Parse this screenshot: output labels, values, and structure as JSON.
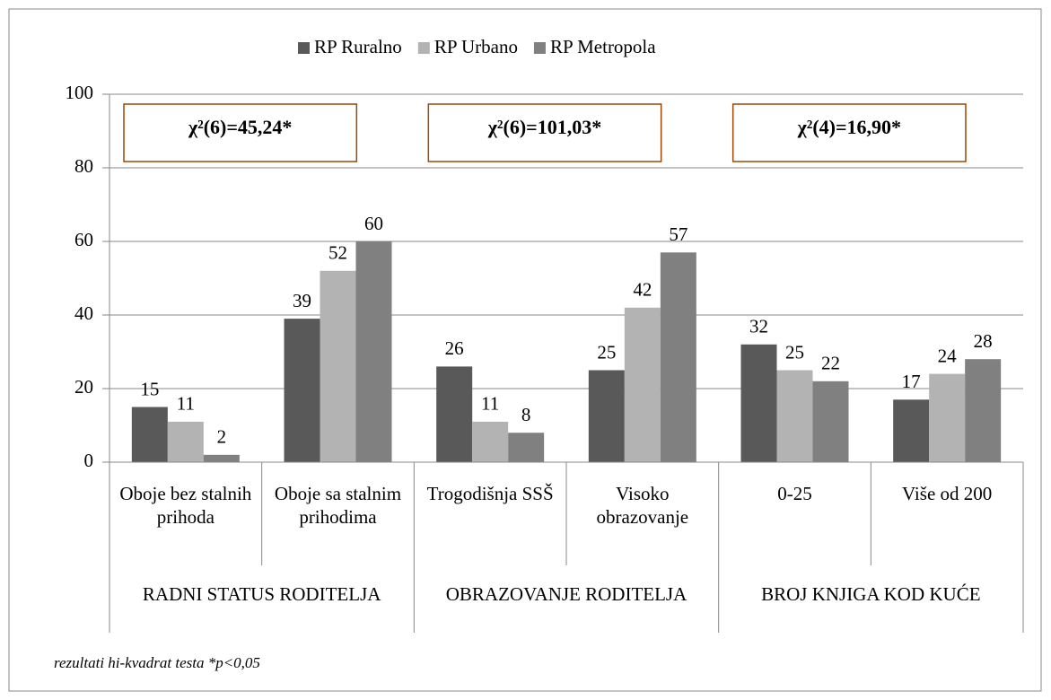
{
  "chart_data": {
    "type": "bar",
    "categories": [
      "Oboje bez stalnih prihoda",
      "Oboje sa stalnim prihodima",
      "Trogodišnja SSŠ",
      "Visoko obrazovanje",
      "0-25",
      "Više od 200"
    ],
    "group_labels": [
      "RADNI STATUS RODITELJA",
      "OBRAZOVANJE RODITELJA",
      "BROJ KNJIGA KOD KUĆE"
    ],
    "annotations": [
      "χ²(6)=45,24*",
      "χ²(6)=101,03*",
      "χ²(4)=16,90*"
    ],
    "series": [
      {
        "name": "RP Ruralno",
        "color": "#595959",
        "values": [
          15,
          39,
          26,
          25,
          32,
          17
        ]
      },
      {
        "name": "RP Urbano",
        "color": "#b3b3b3",
        "values": [
          11,
          52,
          11,
          42,
          25,
          24
        ]
      },
      {
        "name": "RP Metropola",
        "color": "#808080",
        "values": [
          2,
          60,
          8,
          57,
          22,
          28
        ]
      }
    ],
    "ylim": [
      0,
      100
    ],
    "yticks": [
      0,
      20,
      40,
      60,
      80,
      100
    ],
    "grid": true,
    "legend": "top",
    "note": "rezultati hi-kvadrat testa *p<0,05"
  }
}
